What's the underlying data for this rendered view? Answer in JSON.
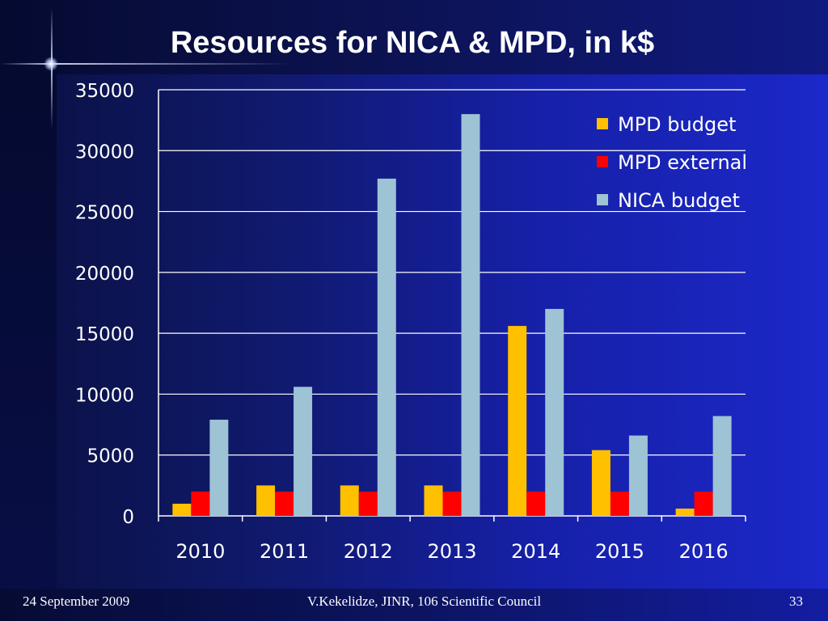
{
  "slide": {
    "title": "Resources for NICA & MPD, in k$",
    "footer_date": "24 September 2009",
    "footer_author": "V.Kekelidze, JINR, 106 Scientific Council",
    "page_number": "33"
  },
  "chart_data": {
    "type": "bar",
    "title": "Resources for NICA & MPD, in k$",
    "xlabel": "",
    "ylabel": "",
    "categories": [
      "2010",
      "2011",
      "2012",
      "2013",
      "2014",
      "2015",
      "2016"
    ],
    "ylim": [
      0,
      35000
    ],
    "yticks": [
      0,
      5000,
      10000,
      15000,
      20000,
      25000,
      30000,
      35000
    ],
    "grid": true,
    "legend_position": "top-right",
    "series": [
      {
        "name": "MPD budget",
        "color": "#ffc000",
        "values": [
          1000,
          2500,
          2500,
          2500,
          15600,
          5400,
          600
        ]
      },
      {
        "name": "MPD external",
        "color": "#ff0000",
        "values": [
          2000,
          2000,
          2000,
          2000,
          2000,
          2000,
          2000
        ]
      },
      {
        "name": "NICA budget",
        "color": "#9dc3d4",
        "values": [
          7900,
          10600,
          27700,
          33000,
          17000,
          6600,
          8200
        ]
      }
    ]
  }
}
